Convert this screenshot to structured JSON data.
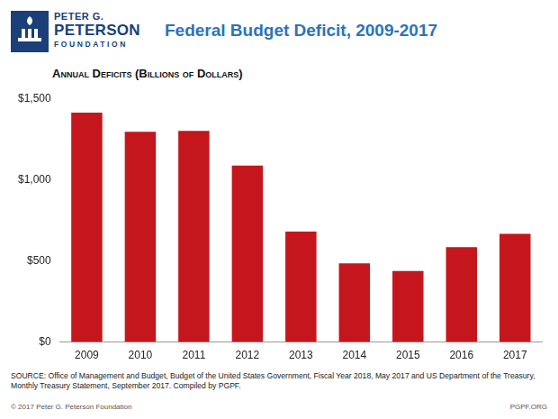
{
  "chart_data": {
    "type": "bar",
    "title": "Federal Budget Deficit, 2009-2017",
    "subtitle": "Annual Deficits (Billions of Dollars)",
    "categories": [
      "2009",
      "2010",
      "2011",
      "2012",
      "2013",
      "2014",
      "2015",
      "2016",
      "2017"
    ],
    "values": [
      1413,
      1294,
      1300,
      1087,
      680,
      485,
      438,
      585,
      666
    ],
    "color": "#c4161c",
    "ylim": [
      0,
      1500
    ],
    "yticks": [
      {
        "value": 0,
        "label": "$0"
      },
      {
        "value": 500,
        "label": "$500"
      },
      {
        "value": 1000,
        "label": "$1,000"
      },
      {
        "value": 1500,
        "label": "$1,500"
      }
    ],
    "grid": false
  },
  "logo": [
    "PETER G.",
    "PETERSON",
    "FOUNDATION"
  ],
  "source": "SOURCE: Office of Management and Budget, Budget of the United States Government, Fiscal Year 2018, May 2017 and US Department of the Treasury, Monthly Treasury Statement, September 2017. Compiled by PGPF.",
  "footer": {
    "copyright": "© 2017 Peter G. Peterson Foundation",
    "website": "PGPF.ORG"
  }
}
